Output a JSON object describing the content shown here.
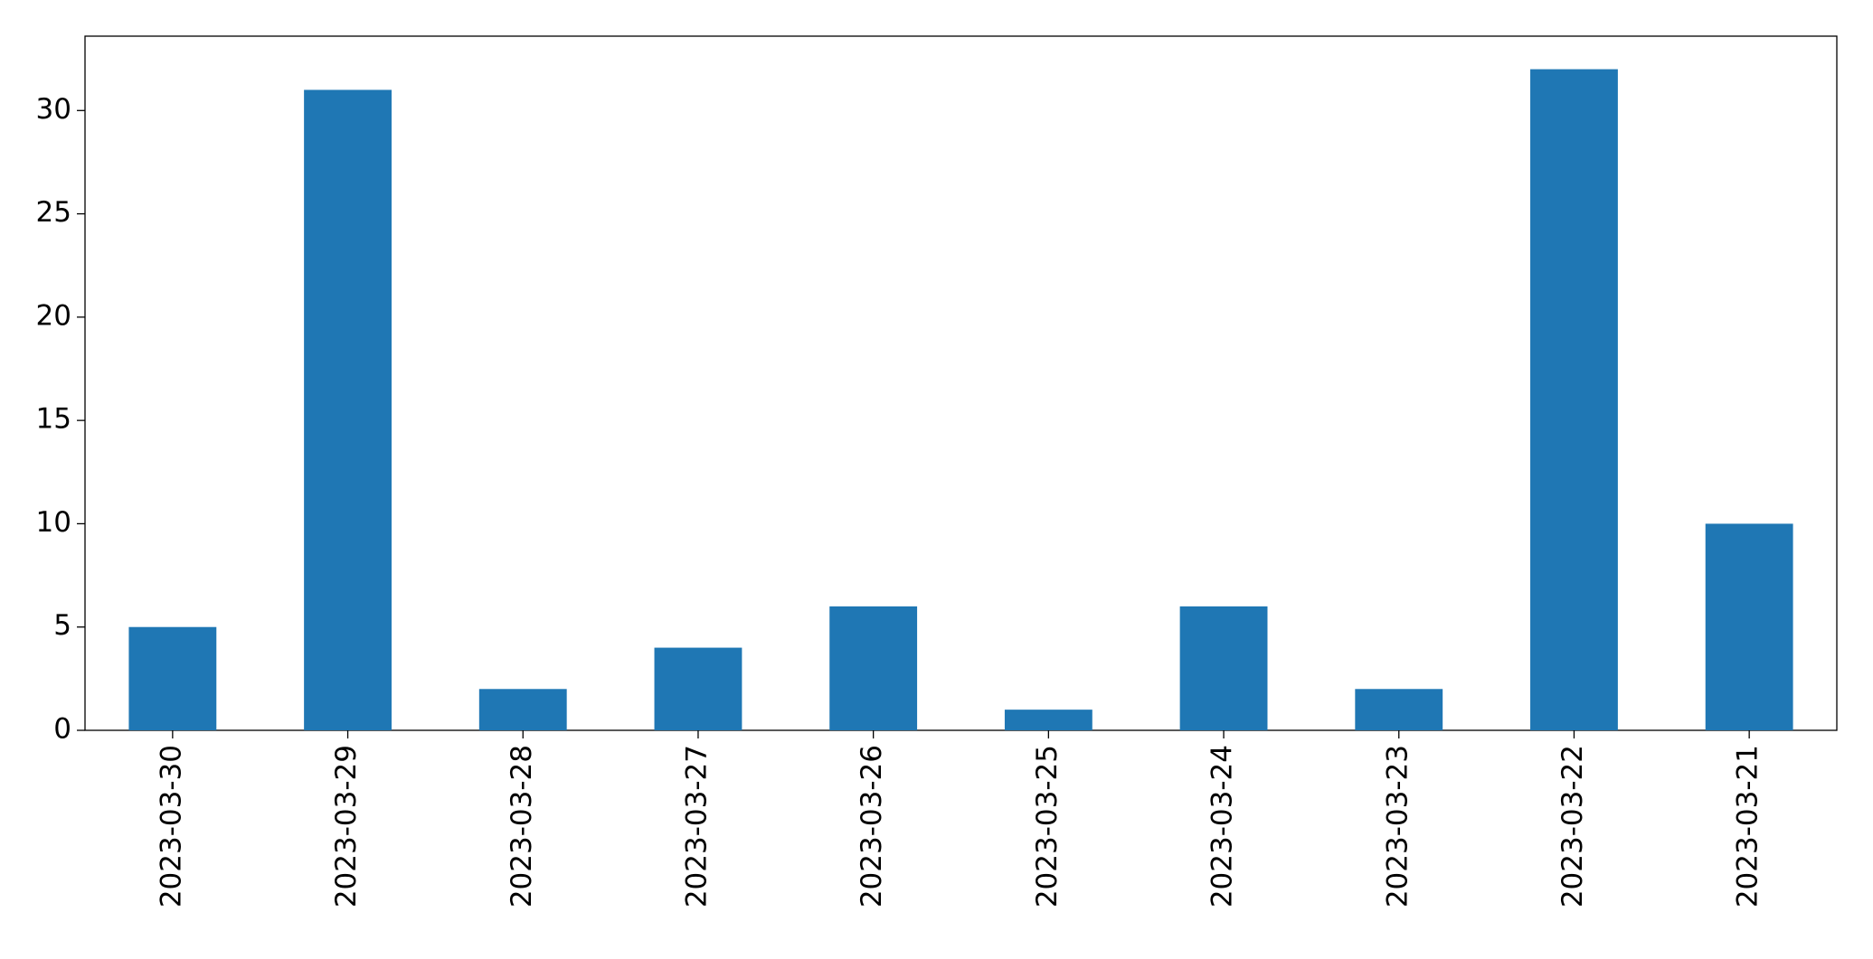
{
  "chart_data": {
    "type": "bar",
    "categories": [
      "2023-03-30",
      "2023-03-29",
      "2023-03-28",
      "2023-03-27",
      "2023-03-26",
      "2023-03-25",
      "2023-03-24",
      "2023-03-23",
      "2023-03-22",
      "2023-03-21"
    ],
    "values": [
      5,
      31,
      2,
      4,
      6,
      1,
      6,
      2,
      32,
      10
    ],
    "color": "#1f77b4",
    "ylim": [
      0,
      33.6
    ],
    "yticks": [
      0,
      5,
      10,
      15,
      20,
      25,
      30
    ],
    "grid": false
  }
}
